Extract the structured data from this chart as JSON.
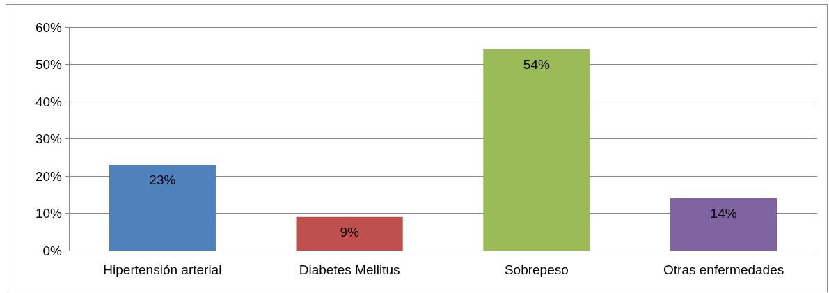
{
  "chart_data": {
    "type": "bar",
    "categories": [
      "Hipertensión arterial",
      "Diabetes Mellitus",
      "Sobrepeso",
      "Otras enfermedades"
    ],
    "values": [
      23,
      9,
      54,
      14
    ],
    "colors": [
      "#4f81bd",
      "#c0504d",
      "#9bbb59",
      "#8064a2"
    ],
    "value_labels": [
      "23%",
      "9%",
      "54%",
      "14%"
    ],
    "ylim": [
      0,
      60
    ],
    "yticks": [
      {
        "value": 0,
        "label": "0%"
      },
      {
        "value": 10,
        "label": "10%"
      },
      {
        "value": 20,
        "label": "20%"
      },
      {
        "value": 30,
        "label": "30%"
      },
      {
        "value": 40,
        "label": "40%"
      },
      {
        "value": 50,
        "label": "50%"
      },
      {
        "value": 60,
        "label": "60%"
      }
    ],
    "grid": "y"
  }
}
